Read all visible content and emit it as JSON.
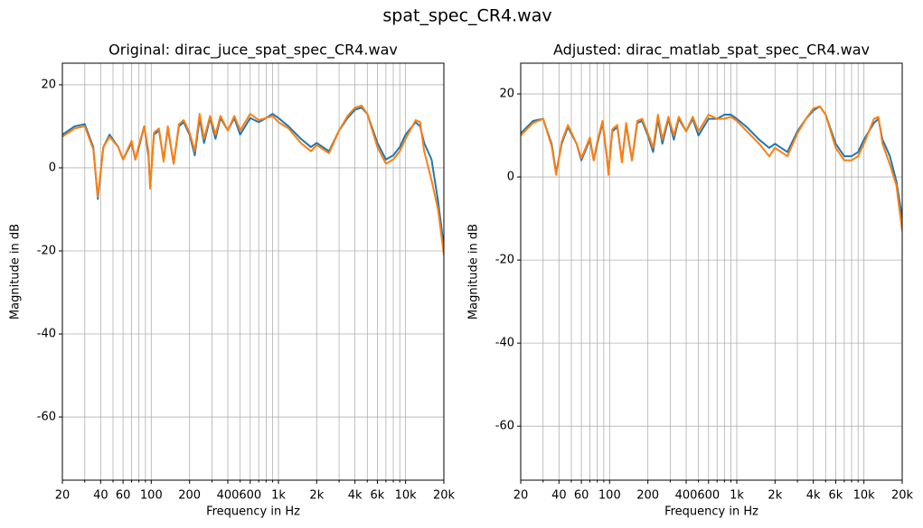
{
  "figure_title": "spat_spec_CR4.wav",
  "chart_data": [
    {
      "type": "line",
      "title": "Original: dirac_juce_spat_spec_CR4.wav",
      "xlabel": "Frequency in Hz",
      "ylabel": "Magnitude in dB",
      "xscale": "log",
      "grid": true,
      "xlim": [
        20,
        20000
      ],
      "ylim": [
        -75.2,
        25.2
      ],
      "xticks": [
        20,
        40,
        60,
        100,
        200,
        400,
        600,
        {
          "value": 1000,
          "label": "1k"
        },
        {
          "value": 2000,
          "label": "2k"
        },
        {
          "value": 4000,
          "label": "4k"
        },
        {
          "value": 6000,
          "label": "6k"
        },
        {
          "value": 10000,
          "label": "10k"
        },
        {
          "value": 20000,
          "label": "20k"
        }
      ],
      "xminorticks": [
        30,
        50,
        70,
        80,
        90,
        300,
        500,
        700,
        800,
        900,
        3000,
        5000,
        7000,
        8000,
        9000
      ],
      "yticks": [
        -60,
        -40,
        -20,
        0,
        20
      ],
      "x": [
        20,
        25,
        30,
        35,
        38,
        42,
        47,
        55,
        60,
        70,
        75,
        80,
        88,
        95,
        98,
        105,
        115,
        125,
        135,
        150,
        165,
        180,
        200,
        220,
        240,
        260,
        290,
        320,
        350,
        400,
        450,
        500,
        600,
        700,
        800,
        900,
        1000,
        1200,
        1500,
        1800,
        2000,
        2500,
        3000,
        3500,
        4000,
        4500,
        5000,
        6000,
        7000,
        8000,
        9000,
        10000,
        12000,
        13000,
        14000,
        16000,
        18000,
        20000
      ],
      "series": [
        {
          "color": "#1f77b4",
          "values": [
            8,
            10,
            10.5,
            5,
            -7.5,
            5,
            8,
            5,
            2,
            6,
            2,
            5,
            10,
            3,
            -4.5,
            8,
            9,
            2,
            9.5,
            1,
            10,
            11,
            8,
            3,
            12,
            6,
            12,
            7,
            12,
            9,
            12,
            8,
            12,
            11,
            12,
            13,
            12,
            10,
            7,
            5,
            6,
            4,
            9,
            12,
            14,
            14.5,
            13,
            6,
            2,
            3,
            5,
            8,
            11,
            10,
            6,
            2,
            -8,
            -19
          ]
        },
        {
          "color": "#ff7f0e",
          "values": [
            7.5,
            9.5,
            10,
            4.5,
            -7,
            5,
            7.5,
            5,
            2,
            6.5,
            2,
            5.5,
            10,
            4,
            -5,
            8.5,
            9.5,
            1.5,
            10,
            1,
            10.5,
            11.5,
            8.5,
            4,
            13,
            7,
            12.5,
            8,
            12.5,
            9,
            12.5,
            9,
            13,
            11.5,
            12,
            12.5,
            11,
            9.5,
            6,
            4,
            5.5,
            3.5,
            9,
            12.5,
            14.5,
            15,
            13,
            5,
            1,
            2,
            4,
            7,
            11.5,
            11,
            4,
            -3,
            -10,
            -21
          ]
        }
      ]
    },
    {
      "type": "line",
      "title": "Adjusted: dirac_matlab_spat_spec_CR4.wav",
      "xlabel": "Frequency in Hz",
      "ylabel": "Magnitude in dB",
      "xscale": "log",
      "grid": true,
      "xlim": [
        20,
        20000
      ],
      "ylim": [
        -73,
        27.4
      ],
      "xticks": [
        20,
        40,
        60,
        100,
        200,
        400,
        600,
        {
          "value": 1000,
          "label": "1k"
        },
        {
          "value": 2000,
          "label": "2k"
        },
        {
          "value": 4000,
          "label": "4k"
        },
        {
          "value": 6000,
          "label": "6k"
        },
        {
          "value": 10000,
          "label": "10k"
        },
        {
          "value": 20000,
          "label": "20k"
        }
      ],
      "xminorticks": [
        30,
        50,
        70,
        80,
        90,
        300,
        500,
        700,
        800,
        900,
        3000,
        5000,
        7000,
        8000,
        9000
      ],
      "yticks": [
        -60,
        -40,
        -20,
        0,
        20
      ],
      "x": [
        20,
        25,
        30,
        35,
        38,
        42,
        47,
        55,
        60,
        70,
        75,
        80,
        88,
        95,
        98,
        105,
        115,
        125,
        135,
        150,
        165,
        180,
        200,
        220,
        240,
        260,
        290,
        320,
        350,
        400,
        450,
        500,
        600,
        700,
        800,
        900,
        1000,
        1200,
        1500,
        1800,
        2000,
        2500,
        3000,
        3500,
        4000,
        4500,
        5000,
        6000,
        7000,
        8000,
        9000,
        10000,
        12000,
        13000,
        14000,
        16000,
        18000,
        20000
      ],
      "series": [
        {
          "color": "#1f77b4",
          "values": [
            10.5,
            13.5,
            14,
            8,
            1,
            8,
            12,
            8,
            4,
            9,
            4,
            8,
            13,
            5,
            1,
            11,
            12,
            4,
            12.5,
            4,
            13,
            13.5,
            10,
            6,
            14,
            8,
            14,
            9,
            14,
            11,
            14,
            10,
            14,
            14,
            15,
            15,
            14,
            12,
            9,
            7,
            8,
            6,
            11,
            14,
            16,
            17,
            15,
            8,
            5,
            5,
            6,
            9,
            13,
            14,
            9,
            5,
            -1,
            -10
          ]
        },
        {
          "color": "#ff7f0e",
          "values": [
            10,
            13,
            14,
            7.5,
            0.5,
            8.5,
            12.5,
            8,
            4.5,
            9.5,
            4,
            8.5,
            13.5,
            5,
            0.5,
            11.5,
            12.5,
            3.5,
            13,
            4,
            13.5,
            14,
            10.5,
            7,
            15,
            9,
            14.5,
            10,
            14.5,
            11,
            14.5,
            11,
            15,
            14,
            14,
            14.5,
            13.5,
            11,
            8,
            5,
            7,
            5,
            10.5,
            14,
            16.5,
            17,
            15,
            7,
            4,
            4,
            5,
            8,
            14,
            14.5,
            8,
            3,
            -2,
            -13
          ]
        }
      ]
    }
  ]
}
